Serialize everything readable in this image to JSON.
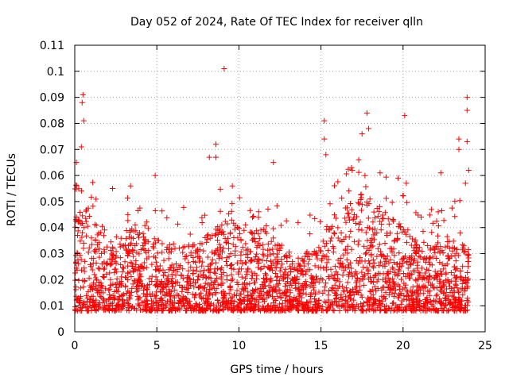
{
  "chart_data": {
    "type": "scatter",
    "title": "Day 052 of 2024, Rate Of TEC Index for receiver qlln",
    "xlabel": "GPS time / hours",
    "ylabel": "ROTI / TECUs",
    "xlim": [
      0,
      25
    ],
    "ylim": [
      0,
      0.11
    ],
    "xticks": [
      0,
      5,
      10,
      15,
      20,
      25
    ],
    "xtick_labels": [
      "0",
      "5",
      "10",
      "15",
      "20",
      "25"
    ],
    "yticks": [
      0,
      0.01,
      0.02,
      0.03,
      0.04,
      0.05,
      0.06,
      0.07,
      0.08,
      0.09,
      0.1,
      0.11
    ],
    "ytick_labels": [
      "0",
      "0.01",
      "0.02",
      "0.03",
      "0.04",
      "0.05",
      "0.06",
      "0.07",
      "0.08",
      "0.09",
      "0.1",
      "0.11"
    ],
    "grid": true,
    "marker": "+",
    "color": "#ff0000",
    "data_range": {
      "x": [
        0,
        24
      ],
      "y": [
        0.004,
        0.101
      ]
    },
    "series": [
      {
        "name": "ROTI",
        "notable_points": [
          {
            "x": 9.1,
            "y": 0.101
          },
          {
            "x": 0.5,
            "y": 0.091
          },
          {
            "x": 0.45,
            "y": 0.088
          },
          {
            "x": 23.9,
            "y": 0.09
          },
          {
            "x": 23.9,
            "y": 0.085
          },
          {
            "x": 17.8,
            "y": 0.084
          },
          {
            "x": 20.1,
            "y": 0.083
          },
          {
            "x": 15.2,
            "y": 0.081
          },
          {
            "x": 0.55,
            "y": 0.081
          },
          {
            "x": 17.9,
            "y": 0.078
          },
          {
            "x": 17.5,
            "y": 0.076
          },
          {
            "x": 15.2,
            "y": 0.074
          },
          {
            "x": 23.4,
            "y": 0.074
          },
          {
            "x": 23.4,
            "y": 0.07
          },
          {
            "x": 8.6,
            "y": 0.072
          },
          {
            "x": 0.4,
            "y": 0.071
          },
          {
            "x": 15.3,
            "y": 0.068
          },
          {
            "x": 8.2,
            "y": 0.067
          },
          {
            "x": 8.6,
            "y": 0.067
          },
          {
            "x": 12.1,
            "y": 0.065
          },
          {
            "x": 0.1,
            "y": 0.065
          },
          {
            "x": 17.3,
            "y": 0.066
          },
          {
            "x": 22.3,
            "y": 0.061
          },
          {
            "x": 4.9,
            "y": 0.06
          },
          {
            "x": 23.9,
            "y": 0.073
          },
          {
            "x": 24.0,
            "y": 0.062
          },
          {
            "x": 23.8,
            "y": 0.057
          },
          {
            "x": 2.3,
            "y": 0.055
          },
          {
            "x": 3.4,
            "y": 0.056
          },
          {
            "x": 9.6,
            "y": 0.056
          },
          {
            "x": 18.6,
            "y": 0.061
          },
          {
            "x": 19.7,
            "y": 0.059
          },
          {
            "x": 20.2,
            "y": 0.057
          },
          {
            "x": 16.9,
            "y": 0.062
          }
        ],
        "bulk_band": {
          "x": [
            0,
            24
          ],
          "y_min": 0.004,
          "y_typical_max": 0.035
        }
      }
    ]
  }
}
